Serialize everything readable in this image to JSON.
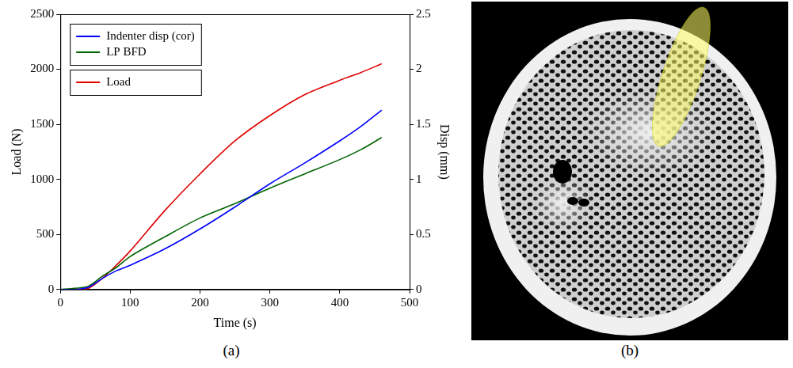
{
  "chart_data": {
    "type": "line",
    "x_label": "Time (s)",
    "y_label": "Load (N)",
    "y2_label": "Disp (mm)",
    "x": [
      0,
      20,
      40,
      60,
      80,
      100,
      150,
      200,
      250,
      300,
      350,
      400,
      430,
      460
    ],
    "series": [
      {
        "name": "Indenter disp (cor)",
        "color": "#0000ff",
        "axis": "y2",
        "values": [
          0,
          0,
          0.02,
          0.1,
          0.17,
          0.22,
          0.37,
          0.55,
          0.75,
          0.96,
          1.15,
          1.35,
          1.48,
          1.63
        ]
      },
      {
        "name": "LP BFD",
        "color": "#006400",
        "axis": "y2",
        "values": [
          0,
          0.01,
          0.03,
          0.12,
          0.2,
          0.3,
          0.48,
          0.65,
          0.78,
          0.92,
          1.05,
          1.18,
          1.27,
          1.38
        ]
      },
      {
        "name": "Load",
        "color": "#e00000",
        "values": [
          0,
          0,
          10,
          100,
          220,
          350,
          720,
          1050,
          1350,
          1580,
          1770,
          1900,
          1970,
          2050
        ]
      }
    ],
    "xlim": [
      0,
      500
    ],
    "xticks": [
      0,
      100,
      200,
      300,
      400,
      500
    ],
    "ylim": [
      0,
      2500
    ],
    "yticks": [
      0,
      500,
      1000,
      1500,
      2000,
      2500
    ],
    "y2lim": [
      0,
      2.5
    ],
    "y2ticks": [
      0,
      0.5,
      1,
      1.5,
      2,
      2.5
    ],
    "grid": false,
    "legend": "upper left"
  },
  "panel_labels": [
    "(a)",
    "(b)"
  ]
}
